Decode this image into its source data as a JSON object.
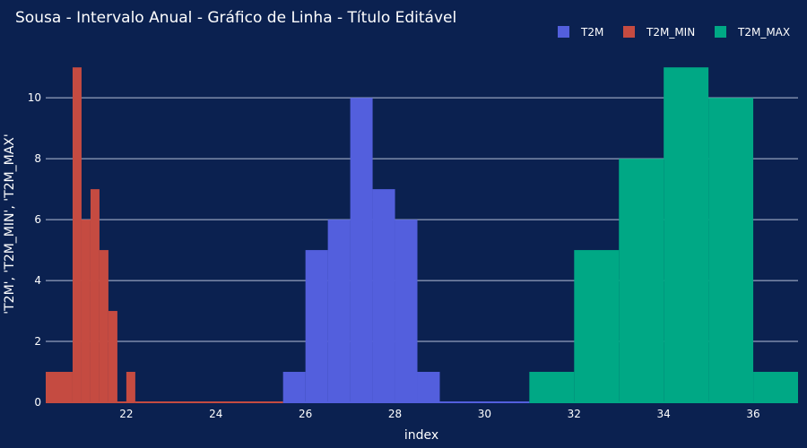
{
  "chart_data": {
    "type": "bar",
    "title": "Sousa - Intervalo Anual - Gráfico de Linha - Título Editável",
    "xlabel": "index",
    "ylabel": "'T2M', 'T2M_MIN', 'T2M_MAX'",
    "xlim": [
      20.2,
      37.0
    ],
    "ylim": [
      0,
      11.3
    ],
    "x_ticks": [
      22,
      24,
      26,
      28,
      30,
      32,
      34,
      36
    ],
    "y_ticks": [
      0,
      2,
      4,
      6,
      8,
      10
    ],
    "grid": true,
    "barmode": "overlay",
    "legend_position": "top-right",
    "series": [
      {
        "name": "T2M",
        "color": "#535fdd",
        "bins": [
          {
            "x0": 25.5,
            "x1": 26.0,
            "count": 1
          },
          {
            "x0": 26.0,
            "x1": 26.5,
            "count": 5
          },
          {
            "x0": 26.5,
            "x1": 27.0,
            "count": 6
          },
          {
            "x0": 27.0,
            "x1": 27.5,
            "count": 10
          },
          {
            "x0": 27.5,
            "x1": 28.0,
            "count": 7
          },
          {
            "x0": 28.0,
            "x1": 28.5,
            "count": 6
          },
          {
            "x0": 28.5,
            "x1": 29.0,
            "count": 1
          }
        ]
      },
      {
        "name": "T2M_MIN",
        "color": "#c54b41",
        "bins": [
          {
            "x0": 20.2,
            "x1": 20.8,
            "count": 1
          },
          {
            "x0": 20.8,
            "x1": 21.0,
            "count": 11
          },
          {
            "x0": 21.0,
            "x1": 21.2,
            "count": 6
          },
          {
            "x0": 21.2,
            "x1": 21.4,
            "count": 7
          },
          {
            "x0": 21.4,
            "x1": 21.6,
            "count": 5
          },
          {
            "x0": 21.6,
            "x1": 21.8,
            "count": 3
          },
          {
            "x0": 22.0,
            "x1": 22.2,
            "count": 1
          }
        ]
      },
      {
        "name": "T2M_MAX",
        "color": "#00a885",
        "bins": [
          {
            "x0": 31.0,
            "x1": 32.0,
            "count": 1
          },
          {
            "x0": 32.0,
            "x1": 33.0,
            "count": 5
          },
          {
            "x0": 33.0,
            "x1": 34.0,
            "count": 8
          },
          {
            "x0": 34.0,
            "x1": 35.0,
            "count": 11
          },
          {
            "x0": 35.0,
            "x1": 36.0,
            "count": 10
          },
          {
            "x0": 36.0,
            "x1": 37.0,
            "count": 1
          }
        ]
      }
    ]
  }
}
